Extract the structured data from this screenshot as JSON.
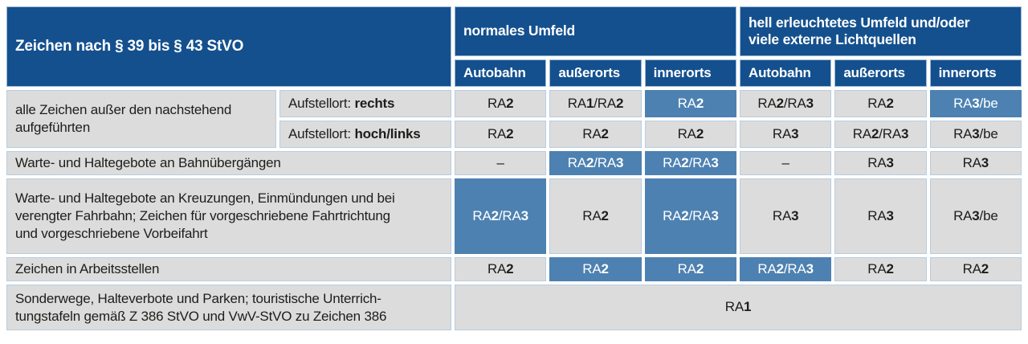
{
  "colors": {
    "header_blue": "#14508e",
    "highlight_blue": "#4d81b1",
    "cell_gray": "#dcdcdc",
    "cell_border": "#b9cdde",
    "text_dark": "#1d1d1b"
  },
  "header": {
    "title": "Zeichen nach § 39 bis § 43 StVO",
    "groups": [
      {
        "lines": [
          "normales Umfeld"
        ]
      },
      {
        "lines": [
          "hell erleuchtetes Umfeld und/oder",
          "viele externe Lichtquellen"
        ]
      }
    ],
    "columns": [
      "Autobahn",
      "außerorts",
      "innerorts",
      "Autobahn",
      "außerorts",
      "innerorts"
    ]
  },
  "rows": [
    {
      "label_lines": [
        "alle Zeichen außer den nachstehend",
        "aufgeführten"
      ],
      "aufstellort_prefix": "Aufstellort: ",
      "aufstellort_value": "rechts",
      "cells": [
        {
          "text": "RA2",
          "hl": false
        },
        {
          "text": "RA1/RA2",
          "hl": false
        },
        {
          "text": "RA2",
          "hl": true
        },
        {
          "text": "RA2/RA3",
          "hl": false
        },
        {
          "text": "RA2",
          "hl": false
        },
        {
          "text": "RA3/be",
          "hl": true
        }
      ]
    },
    {
      "aufstellort_prefix": "Aufstellort: ",
      "aufstellort_value": "hoch/links",
      "cells": [
        {
          "text": "RA2",
          "hl": false
        },
        {
          "text": "RA2",
          "hl": false
        },
        {
          "text": "RA2",
          "hl": false
        },
        {
          "text": "RA3",
          "hl": false
        },
        {
          "text": "RA2/RA3",
          "hl": false
        },
        {
          "text": "RA3/be",
          "hl": false
        }
      ]
    },
    {
      "label": "Warte- und Haltegebote an Bahnübergängen",
      "cells": [
        {
          "text": "–",
          "hl": false
        },
        {
          "text": "RA2/RA3",
          "hl": true
        },
        {
          "text": "RA2/RA3",
          "hl": true
        },
        {
          "text": "–",
          "hl": false
        },
        {
          "text": "RA3",
          "hl": false
        },
        {
          "text": "RA3",
          "hl": false
        }
      ]
    },
    {
      "label_lines": [
        "Warte- und Haltegebote an Kreuzungen, Einmündungen und bei",
        "verengter Fahrbahn; Zeichen für vorgeschriebene Fahrtrichtung",
        "und vorgeschriebene Vorbeifahrt"
      ],
      "cells": [
        {
          "text": "RA2/RA3",
          "hl": true
        },
        {
          "text": "RA2",
          "hl": false
        },
        {
          "text": "RA2/RA3",
          "hl": true
        },
        {
          "text": "RA3",
          "hl": false
        },
        {
          "text": "RA3",
          "hl": false
        },
        {
          "text": "RA3/be",
          "hl": false
        }
      ]
    },
    {
      "label": "Zeichen in Arbeitsstellen",
      "cells": [
        {
          "text": "RA2",
          "hl": false
        },
        {
          "text": "RA2",
          "hl": true
        },
        {
          "text": "RA2",
          "hl": true
        },
        {
          "text": "RA2/RA3",
          "hl": true
        },
        {
          "text": "RA2",
          "hl": false
        },
        {
          "text": "RA2",
          "hl": false
        }
      ]
    },
    {
      "label_lines": [
        "Sonderwege, Halteverbote und Parken; touristische Unterrich-",
        "tungstafeln gemäß Z 386 StVO und VwV-StVO zu Zeichen 386"
      ],
      "span_cell": {
        "text": "RA1",
        "hl": false
      }
    }
  ]
}
